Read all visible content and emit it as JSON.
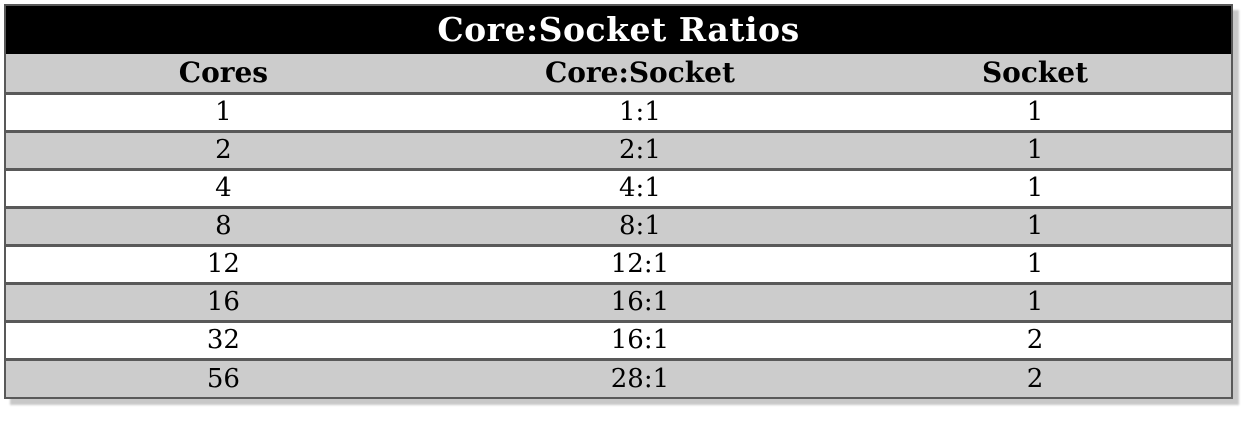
{
  "title": "Core:Socket Ratios",
  "table": {
    "columns": [
      "Cores",
      "Core:Socket",
      "Socket"
    ],
    "rows": [
      [
        "1",
        "1:1",
        "1"
      ],
      [
        "2",
        "2:1",
        "1"
      ],
      [
        "4",
        "4:1",
        "1"
      ],
      [
        "8",
        "8:1",
        "1"
      ],
      [
        "12",
        "12:1",
        "1"
      ],
      [
        "16",
        "16:1",
        "1"
      ],
      [
        "32",
        "16:1",
        "2"
      ],
      [
        "56",
        "28:1",
        "2"
      ]
    ]
  },
  "chart_data": {
    "type": "table",
    "title": "Core:Socket Ratios",
    "columns": [
      "Cores",
      "Core:Socket",
      "Socket"
    ],
    "rows": [
      {
        "cores": 1,
        "core_socket_ratio": "1:1",
        "sockets": 1
      },
      {
        "cores": 2,
        "core_socket_ratio": "2:1",
        "sockets": 1
      },
      {
        "cores": 4,
        "core_socket_ratio": "4:1",
        "sockets": 1
      },
      {
        "cores": 8,
        "core_socket_ratio": "8:1",
        "sockets": 1
      },
      {
        "cores": 12,
        "core_socket_ratio": "12:1",
        "sockets": 1
      },
      {
        "cores": 16,
        "core_socket_ratio": "16:1",
        "sockets": 1
      },
      {
        "cores": 32,
        "core_socket_ratio": "16:1",
        "sockets": 2
      },
      {
        "cores": 56,
        "core_socket_ratio": "28:1",
        "sockets": 2
      }
    ],
    "layout": {
      "striped": true,
      "header_band": "black-title-over-gray-header"
    }
  },
  "colors": {
    "title_bg": "#000000",
    "title_text": "#ffffff",
    "header_bg": "#cccccc",
    "row_bg": "#ffffff",
    "row_alt_bg": "#cccccc",
    "border": "#595959",
    "text": "#000000",
    "shadow": "#c8c8c8"
  }
}
